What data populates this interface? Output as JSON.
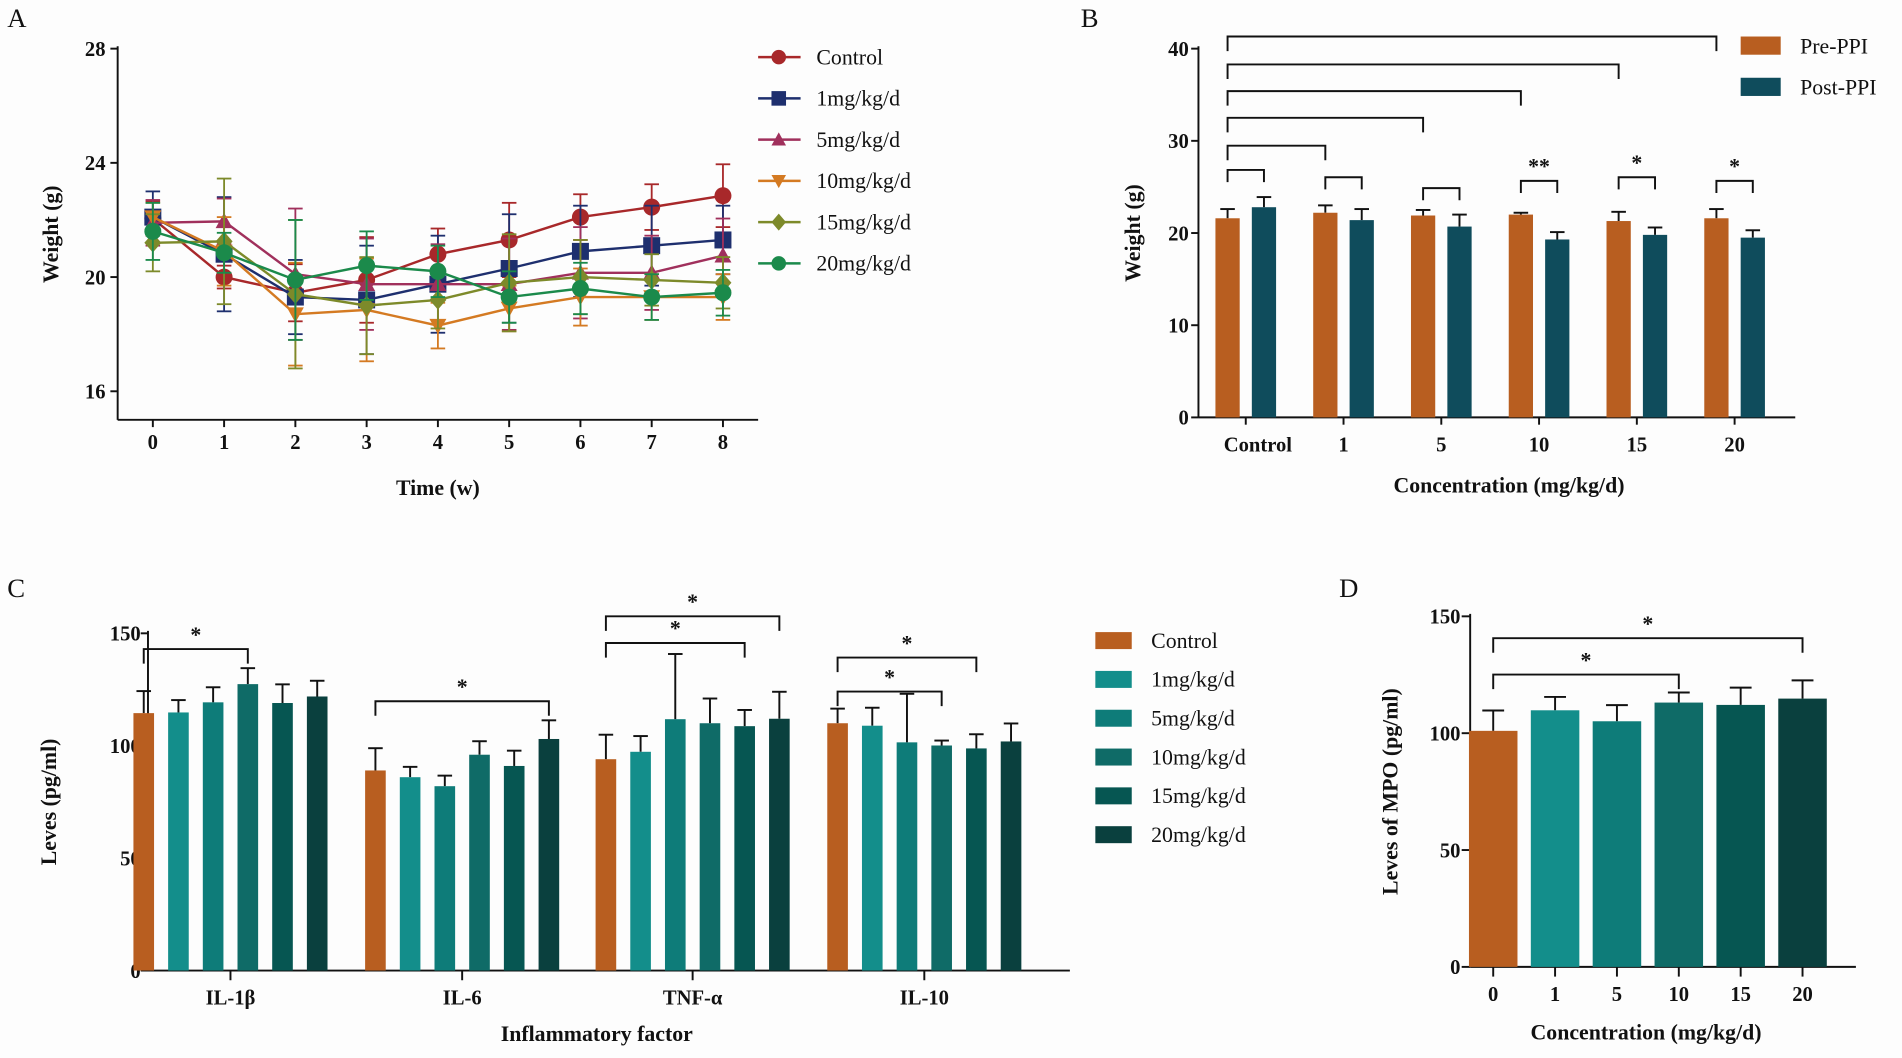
{
  "chart_data": [
    {
      "panel": "A",
      "type": "line",
      "xlabel": "Time (w)",
      "ylabel": "Weight (g)",
      "x": [
        0,
        1,
        2,
        3,
        4,
        5,
        6,
        7,
        8
      ],
      "x_ticks": [
        "0",
        "1",
        "2",
        "3",
        "4",
        "5",
        "6",
        "7",
        "8"
      ],
      "y_ticks": [
        "16",
        "20",
        "24",
        "28"
      ],
      "ylim": [
        15,
        28
      ],
      "legend_position": "right",
      "series": [
        {
          "name": "Control",
          "marker": "circle",
          "color": "#a8282a",
          "values": [
            22.05,
            20.0,
            19.45,
            19.9,
            20.8,
            21.3,
            22.1,
            22.45,
            22.85
          ],
          "error": [
            0.6,
            0.4,
            1.0,
            1.5,
            0.9,
            1.3,
            0.8,
            0.8,
            1.1
          ]
        },
        {
          "name": "1mg/kg/d",
          "marker": "square",
          "color": "#1e2f6e",
          "values": [
            22.1,
            20.8,
            19.3,
            19.2,
            19.75,
            20.3,
            20.9,
            21.1,
            21.3
          ],
          "error": [
            0.9,
            2.0,
            1.3,
            1.9,
            1.7,
            1.9,
            1.6,
            1.4,
            1.2
          ]
        },
        {
          "name": "5mg/kg/d",
          "marker": "triangle-up",
          "color": "#a0305c",
          "values": [
            21.9,
            21.95,
            20.1,
            19.75,
            19.75,
            19.75,
            20.15,
            20.15,
            20.75
          ],
          "error": [
            0.8,
            0.8,
            2.3,
            1.6,
            1.4,
            1.6,
            1.6,
            1.3,
            1.3
          ]
        },
        {
          "name": "10mg/kg/d",
          "marker": "triangle-down",
          "color": "#d47a22",
          "values": [
            22.1,
            20.9,
            18.7,
            18.85,
            18.3,
            18.9,
            19.3,
            19.3,
            19.3
          ],
          "error": [
            0.5,
            1.2,
            1.8,
            1.8,
            0.8,
            0.8,
            1.0,
            0.8,
            0.8
          ]
        },
        {
          "name": "15mg/kg/d",
          "marker": "diamond",
          "color": "#7d8a2a",
          "values": [
            21.2,
            21.25,
            19.4,
            19.0,
            19.2,
            19.8,
            20.0,
            19.9,
            19.8
          ],
          "error": [
            1.0,
            2.2,
            2.6,
            1.7,
            1.0,
            1.7,
            1.3,
            0.9,
            0.9
          ]
        },
        {
          "name": "20mg/kg/d",
          "marker": "circle",
          "color": "#1b8a4b",
          "values": [
            21.6,
            20.85,
            19.9,
            20.4,
            20.2,
            19.3,
            19.6,
            19.3,
            19.45
          ],
          "error": [
            1.0,
            0.7,
            2.1,
            1.2,
            0.9,
            0.9,
            0.9,
            0.8,
            0.8
          ]
        }
      ]
    },
    {
      "panel": "B",
      "type": "bar",
      "xlabel": "Concentration (mg/kg/d)",
      "ylabel": "Weight (g)",
      "categories": [
        "Control",
        "1",
        "5",
        "10",
        "15",
        "20"
      ],
      "y_ticks": [
        "0",
        "10",
        "20",
        "30",
        "40"
      ],
      "ylim": [
        0,
        40
      ],
      "legend_position": "top-right",
      "series": [
        {
          "name": "Pre-PPI",
          "color": "#b85e20",
          "values": [
            21.6,
            22.2,
            21.9,
            22.0,
            21.3,
            21.6
          ],
          "error": [
            1.0,
            0.8,
            0.6,
            0.2,
            1.0,
            1.0
          ]
        },
        {
          "name": "Post-PPI",
          "color": "#0f4c5c",
          "values": [
            22.8,
            21.4,
            20.7,
            19.3,
            19.8,
            19.5
          ],
          "error": [
            1.1,
            1.2,
            1.3,
            0.8,
            0.8,
            0.8
          ]
        }
      ],
      "comparisons_vs_control": [
        {
          "to": "1",
          "label": ""
        },
        {
          "to": "5",
          "label": ""
        },
        {
          "to": "10",
          "label": ""
        },
        {
          "to": "15",
          "label": ""
        },
        {
          "to": "20",
          "label": ""
        }
      ],
      "pair_comparisons": [
        "",
        "",
        "",
        "**",
        "*",
        "*"
      ]
    },
    {
      "panel": "C",
      "type": "bar",
      "xlabel": "Inflammatory factor",
      "ylabel": "Leves (pg/ml)",
      "categories": [
        "IL-1β",
        "IL-6",
        "TNF-α",
        "IL-10"
      ],
      "y_ticks": [
        "0",
        "50",
        "100",
        "150"
      ],
      "ylim": [
        0,
        150
      ],
      "legend_position": "right",
      "series": [
        {
          "name": "Control",
          "color": "#b85e20",
          "values": [
            114.5,
            89,
            94,
            110
          ],
          "error": [
            9.8,
            9.9,
            10.9,
            6.5
          ]
        },
        {
          "name": "1mg/kg/d",
          "color": "#138e8b",
          "values": [
            114.8,
            86,
            97.3,
            108.9
          ],
          "error": [
            5.5,
            4.6,
            7.0,
            8.0
          ]
        },
        {
          "name": "5mg/kg/d",
          "color": "#0e7c79",
          "values": [
            119.3,
            82,
            111.8,
            101.5
          ],
          "error": [
            6.7,
            4.7,
            29.0,
            21.6
          ]
        },
        {
          "name": "10mg/kg/d",
          "color": "#0f6b67",
          "values": [
            127.4,
            96,
            110,
            100.1
          ],
          "error": [
            7.1,
            6.0,
            11.0,
            2.2
          ]
        },
        {
          "name": "15mg/kg/d",
          "color": "#065652",
          "values": [
            119,
            91,
            108.7,
            98.8
          ],
          "error": [
            8.3,
            6.8,
            7.2,
            6.3
          ]
        },
        {
          "name": "20mg/kg/d",
          "color": "#0a403e",
          "values": [
            121.9,
            103,
            112,
            101.9
          ],
          "error": [
            7.0,
            8.3,
            12.0,
            8.0
          ]
        }
      ],
      "comparisons": [
        {
          "category": "IL-1β",
          "from": "Control",
          "to": "10mg/kg/d",
          "label": "*"
        },
        {
          "category": "IL-6",
          "from": "Control",
          "to": "20mg/kg/d",
          "label": "*"
        },
        {
          "category": "TNF-α",
          "from": "Control",
          "to": "15mg/kg/d",
          "label": "*"
        },
        {
          "category": "TNF-α",
          "from": "Control",
          "to": "20mg/kg/d",
          "label": "*"
        },
        {
          "category": "IL-10",
          "from": "Control",
          "to": "10mg/kg/d",
          "label": "*"
        },
        {
          "category": "IL-10",
          "from": "Control",
          "to": "15mg/kg/d",
          "label": "*"
        }
      ]
    },
    {
      "panel": "D",
      "type": "bar",
      "xlabel": "Concentration (mg/kg/d)",
      "ylabel": "Leves of MPO (pg/ml)",
      "categories": [
        "0",
        "1",
        "5",
        "10",
        "15",
        "20"
      ],
      "y_ticks": [
        "0",
        "50",
        "100",
        "150"
      ],
      "ylim": [
        0,
        150
      ],
      "colors": [
        "#b85e20",
        "#138e8b",
        "#0e7c79",
        "#0f6b67",
        "#065652",
        "#0a403e"
      ],
      "values": [
        101,
        109.8,
        105.1,
        113.1,
        112.1,
        114.8
      ],
      "error": [
        8.7,
        5.7,
        6.9,
        4.3,
        7.4,
        7.8
      ],
      "comparisons": [
        {
          "from": "0",
          "to": "10",
          "label": "*"
        },
        {
          "from": "0",
          "to": "20",
          "label": "*"
        }
      ]
    }
  ]
}
